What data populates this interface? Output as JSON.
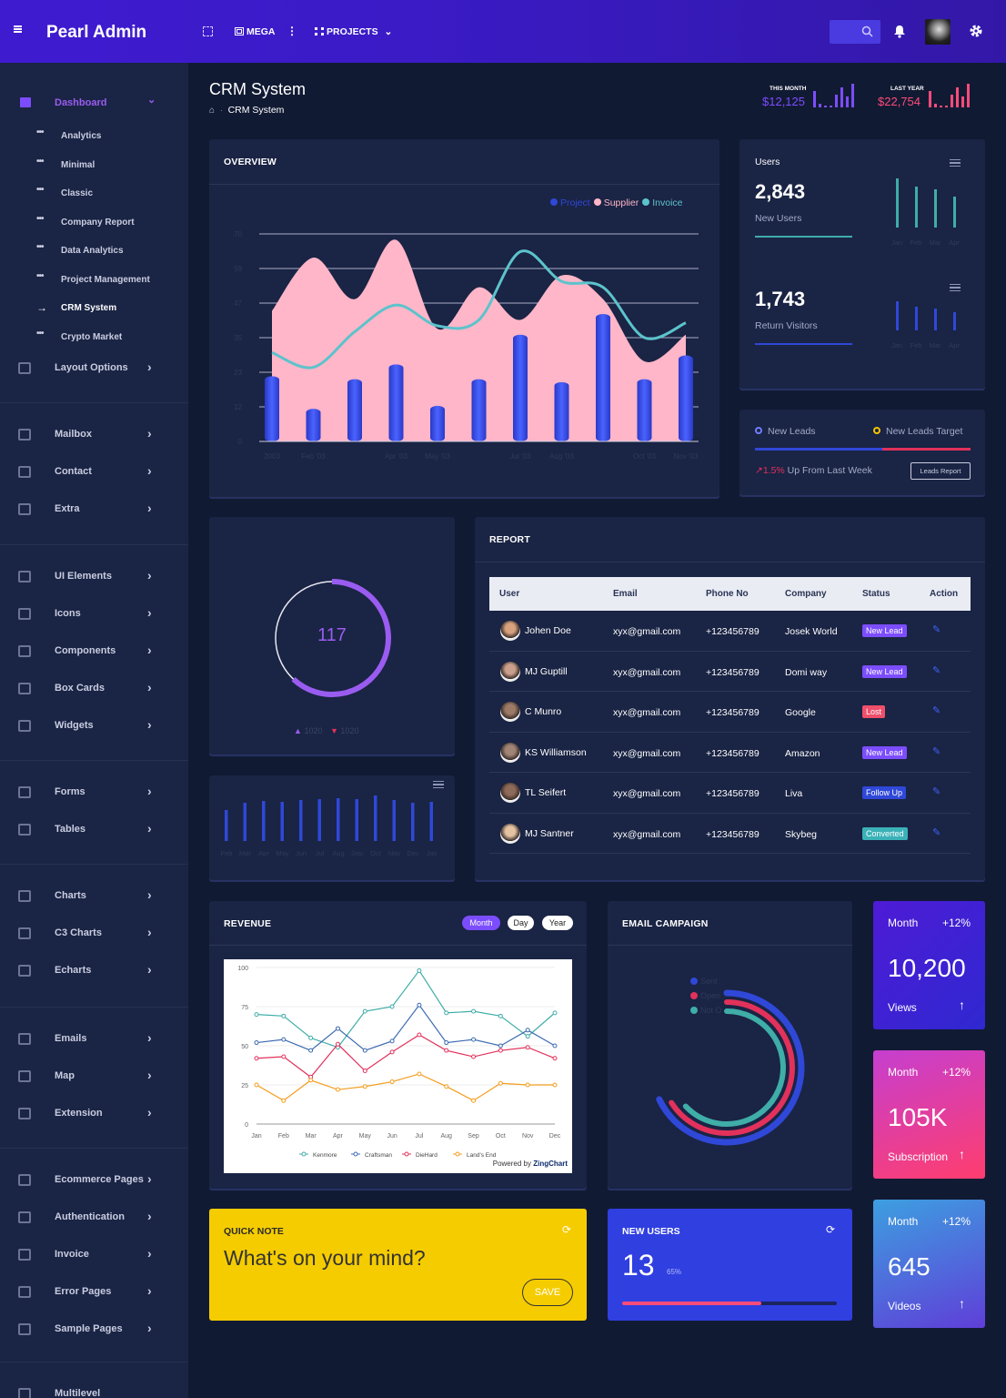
{
  "brand": {
    "name": "Pearl Admin"
  },
  "topbar": {
    "mega_label": "MEGA",
    "projects_label": "PROJECTS",
    "icons": [
      "menu-icon",
      "fullscreen-icon",
      "grid-icon",
      "more-vertical-icon",
      "apps-icon",
      "chevron-down-icon",
      "search-icon",
      "bell-icon",
      "gear-icon"
    ]
  },
  "page": {
    "title": "CRM System",
    "breadcrumb_current": "CRM System"
  },
  "header_stats": [
    {
      "label": "THIS MONTH",
      "value": "$12,125",
      "color": "#7c4dff"
    },
    {
      "label": "LAST YEAR",
      "value": "$22,754",
      "color": "#ff4b7a"
    }
  ],
  "sidebar": {
    "dashboard_label": "Dashboard",
    "sub_items": [
      "Analytics",
      "Minimal",
      "Classic",
      "Company Report",
      "Data Analytics",
      "Project Management",
      "CRM System",
      "Crypto Market"
    ],
    "active_sub": "CRM System",
    "groups": [
      [
        "Layout Options"
      ],
      [
        "Mailbox",
        "Contact",
        "Extra"
      ],
      [
        "UI Elements",
        "Icons",
        "Components",
        "Box Cards",
        "Widgets"
      ],
      [
        "Forms",
        "Tables"
      ],
      [
        "Charts",
        "C3 Charts",
        "Echarts"
      ],
      [
        "Emails",
        "Map",
        "Extension"
      ],
      [
        "Ecommerce Pages",
        "Authentication",
        "Invoice",
        "Error Pages",
        "Sample Pages"
      ],
      [
        "Multilevel"
      ]
    ]
  },
  "overview": {
    "title": "OVERVIEW",
    "legend": [
      {
        "name": "Project",
        "color": "#2f48d8"
      },
      {
        "name": "Supplier",
        "color": "#ffb6c8"
      },
      {
        "name": "Invoice",
        "color": "#5cc3cc"
      }
    ],
    "chart_data": {
      "type": "bar",
      "y_ticks": [
        "0",
        "12",
        "23",
        "35",
        "47",
        "59",
        "70"
      ],
      "x_labels": [
        "2003",
        "Feb '03",
        "",
        "Apr '03",
        "May '03",
        "",
        "Jul '03",
        "Aug '03",
        "",
        "Oct '03",
        "Nov '03"
      ],
      "ylim": [
        0,
        70
      ],
      "series": [
        {
          "name": "Project",
          "type": "bar",
          "values": [
            22,
            11,
            21,
            26,
            12,
            21,
            36,
            20,
            43,
            21,
            29
          ]
        },
        {
          "name": "Supplier",
          "type": "area",
          "values": [
            44,
            62,
            48,
            68,
            38,
            52,
            41,
            56,
            48,
            27,
            36
          ]
        },
        {
          "name": "Invoice",
          "type": "line",
          "values": [
            30,
            25,
            37,
            46,
            39,
            41,
            64,
            54,
            52,
            35,
            40
          ]
        }
      ]
    }
  },
  "users_card": {
    "label": "Users",
    "stat1": {
      "value": "2,843",
      "label": "New Users"
    },
    "stat2": {
      "value": "1,743",
      "label": "Return Visitors"
    },
    "months": [
      "Jan",
      "Feb",
      "Mar",
      "Apr"
    ],
    "chart_data": [
      {
        "type": "bar",
        "categories": [
          "Jan",
          "Feb",
          "Mar",
          "Apr"
        ],
        "values": [
          54,
          45,
          42,
          34
        ]
      },
      {
        "type": "bar",
        "categories": [
          "Jan",
          "Feb",
          "Mar",
          "Apr"
        ],
        "values": [
          32,
          26,
          24,
          20
        ]
      }
    ]
  },
  "leads": {
    "legend1": "New Leads",
    "legend2": "New Leads Target",
    "trend": "1.5%",
    "trend_text": "Up From Last Week",
    "button": "Leads Report",
    "progress": 0.59
  },
  "gauge": {
    "value": "117",
    "legend1": "1020",
    "legend2": "1020",
    "progress": 0.62
  },
  "mini_bar": {
    "chart_data": {
      "type": "bar",
      "categories": [
        "Feb",
        "Mar",
        "Apr",
        "May",
        "Jun",
        "Jul",
        "Aug",
        "Sep",
        "Oct",
        "Nov",
        "Dec",
        "Jan"
      ],
      "values": [
        34,
        42,
        44,
        43,
        45,
        46,
        47,
        46,
        50,
        45,
        42,
        43
      ]
    }
  },
  "report": {
    "title": "REPORT",
    "headers": [
      "User",
      "Email",
      "Phone No",
      "Company",
      "Status",
      "Action"
    ],
    "rows": [
      {
        "name": "Johen Doe",
        "email": "xyx@gmail.com",
        "phone": "+123456789",
        "company": "Josek World",
        "status": "New Lead",
        "status_color": "#7c4dff"
      },
      {
        "name": "MJ Guptill",
        "email": "xyx@gmail.com",
        "phone": "+123456789",
        "company": "Domi way",
        "status": "New Lead",
        "status_color": "#7c4dff"
      },
      {
        "name": "C Munro",
        "email": "xyx@gmail.com",
        "phone": "+123456789",
        "company": "Google",
        "status": "Lost",
        "status_color": "#ee4f6b"
      },
      {
        "name": "KS Williamson",
        "email": "xyx@gmail.com",
        "phone": "+123456789",
        "company": "Amazon",
        "status": "New Lead",
        "status_color": "#7c4dff"
      },
      {
        "name": "TL Seifert",
        "email": "xyx@gmail.com",
        "phone": "+123456789",
        "company": "Liva",
        "status": "Follow Up",
        "status_color": "#2f48d8"
      },
      {
        "name": "MJ Santner",
        "email": "xyx@gmail.com",
        "phone": "+123456789",
        "company": "Skybeg",
        "status": "Converted",
        "status_color": "#3bb2b8"
      }
    ]
  },
  "revenue": {
    "title": "REVENUE",
    "tabs": [
      "Month",
      "Day",
      "Year"
    ],
    "powered": "Powered by",
    "powered_brand": "ZingChart",
    "chart_data": {
      "type": "line",
      "categories": [
        "Jan",
        "Feb",
        "Mar",
        "Apr",
        "May",
        "Jun",
        "Jul",
        "Aug",
        "Sep",
        "Oct",
        "Nov",
        "Dec"
      ],
      "y_ticks": [
        "0",
        "25",
        "50",
        "75",
        "100"
      ],
      "ylim": [
        0,
        100
      ],
      "series": [
        {
          "name": "Kenmore",
          "color": "#3fada8",
          "values": [
            70,
            69,
            55,
            49,
            72,
            75,
            98,
            71,
            72,
            69,
            56,
            71
          ]
        },
        {
          "name": "Craftsman",
          "color": "#3d6bb0",
          "values": [
            52,
            54,
            47,
            61,
            47,
            53,
            76,
            52,
            54,
            50,
            60,
            50
          ]
        },
        {
          "name": "DieHard",
          "color": "#e2315b",
          "values": [
            42,
            43,
            30,
            51,
            34,
            46,
            57,
            47,
            43,
            47,
            49,
            42
          ]
        },
        {
          "name": "Land's End",
          "color": "#f39c1b",
          "values": [
            25,
            15,
            28,
            22,
            24,
            27,
            32,
            24,
            15,
            26,
            25,
            25
          ]
        }
      ]
    }
  },
  "email_campaign": {
    "title": "EMAIL CAMPAIGN",
    "chart_data": {
      "type": "radial",
      "series": [
        {
          "name": "Sent",
          "value": 0.68,
          "color": "#2f48d8"
        },
        {
          "name": "Open",
          "value": 0.66,
          "color": "#e2315b"
        },
        {
          "name": "Not Opened",
          "value": 0.63,
          "color": "#3fada8"
        }
      ]
    },
    "legend": [
      "Sent",
      "Open",
      "Not O"
    ]
  },
  "tiles": [
    {
      "period": "Month",
      "change": "+12%",
      "value": "10,200",
      "label": "Views"
    },
    {
      "period": "Month",
      "change": "+12%",
      "value": "105K",
      "label": "Subscription"
    },
    {
      "period": "Month",
      "change": "+12%",
      "value": "645",
      "label": "Videos"
    }
  ],
  "quick_note": {
    "title": "QUICK NOTE",
    "placeholder": "What's on your mind?",
    "button": "SAVE"
  },
  "new_users": {
    "title": "NEW USERS",
    "value": "13",
    "percent": "65%",
    "progress": 0.65
  }
}
